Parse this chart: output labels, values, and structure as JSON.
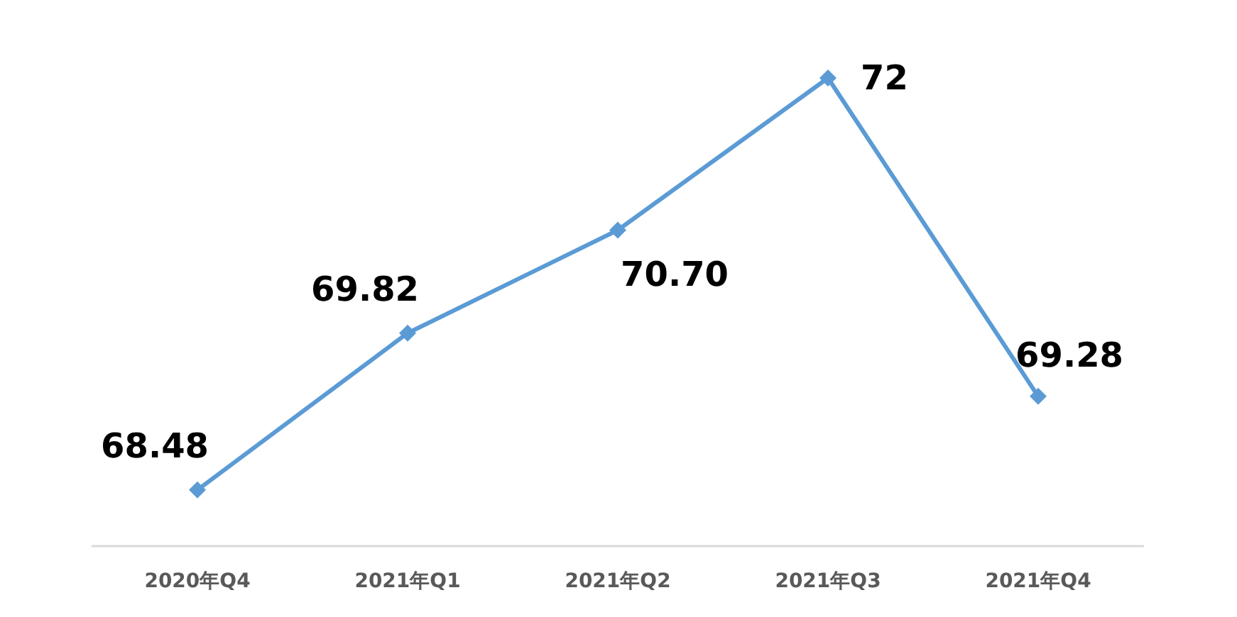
{
  "chart_data": {
    "type": "line",
    "categories": [
      "2020年Q4",
      "2021年Q1",
      "2021年Q2",
      "2021年Q3",
      "2021年Q4"
    ],
    "series": [
      {
        "color": "#5b9bd5",
        "values": [
          68.48,
          69.82,
          70.7,
          72,
          69.28
        ],
        "value_labels": [
          "68.48",
          "69.82",
          "70.70",
          "72",
          "69.28"
        ]
      }
    ],
    "marker": "diamond",
    "line_style": "solid",
    "tick_labels": "x"
  }
}
